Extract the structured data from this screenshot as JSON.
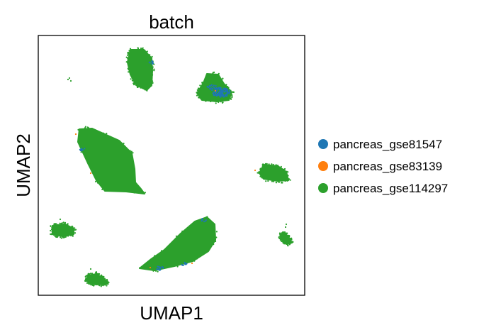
{
  "chart_data": {
    "type": "scatter",
    "title": "batch",
    "xlabel": "UMAP1",
    "ylabel": "UMAP2",
    "grid": false,
    "xticks": [],
    "yticks": [],
    "legend_position": "right",
    "series": [
      {
        "name": "pancreas_gse81547",
        "color": "#1f77b4"
      },
      {
        "name": "pancreas_gse83139",
        "color": "#ff7f0e"
      },
      {
        "name": "pancreas_gse114297",
        "color": "#2ca02c"
      }
    ]
  }
}
